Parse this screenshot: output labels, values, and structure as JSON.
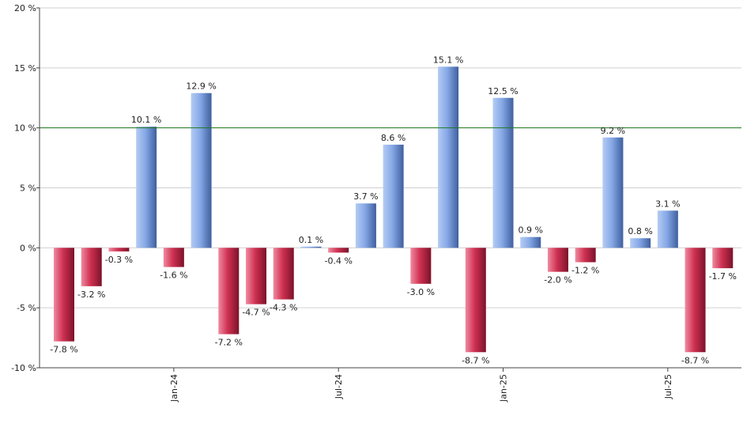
{
  "chart_data": {
    "type": "bar",
    "y_tick_labels": [
      "20 %",
      "15 %",
      "10 %",
      "5 %",
      "0 %",
      "-5 %",
      "-10 %"
    ],
    "y_ticks": [
      20,
      15,
      10,
      5,
      0,
      -5,
      -10
    ],
    "ylim": [
      -10,
      20
    ],
    "values": [
      -7.8,
      -3.2,
      -0.3,
      10.1,
      -1.6,
      12.9,
      -7.2,
      -4.7,
      -4.3,
      0.1,
      -0.4,
      3.7,
      8.6,
      -3.0,
      15.1,
      -8.7,
      12.5,
      0.9,
      -2.0,
      -1.2,
      9.2,
      0.8,
      3.1,
      -8.7,
      -1.7
    ],
    "data_labels": [
      "-7.8 %",
      "-3.2 %",
      "-0.3 %",
      "10.1 %",
      "-1.6 %",
      "12.9 %",
      "-7.2 %",
      "-4.7 %",
      "-4.3 %",
      "0.1 %",
      "-0.4 %",
      "3.7 %",
      "8.6 %",
      "-3.0 %",
      "15.1 %",
      "-8.7 %",
      "12.5 %",
      "0.9 %",
      "-2.0 %",
      "-1.2 %",
      "9.2 %",
      "0.8 %",
      "3.1 %",
      "-8.7 %",
      "-1.7 %"
    ],
    "x_tick_labels": [
      {
        "label": "Jan-24",
        "bar_index": 4
      },
      {
        "label": "Jul-24",
        "bar_index": 10
      },
      {
        "label": "Jan-25",
        "bar_index": 16
      },
      {
        "label": "Jul-25",
        "bar_index": 22
      }
    ],
    "reference_line": 10,
    "grid": true,
    "colors": {
      "positive": "#7a9ee0",
      "negative": "#c8284a",
      "reference_line": "#1e7a1e",
      "grid": "#d0d0d0"
    }
  }
}
